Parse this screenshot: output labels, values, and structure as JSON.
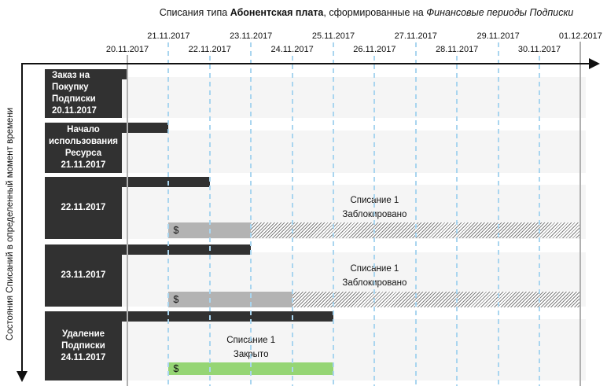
{
  "title": {
    "part1": "Списания типа ",
    "bold": "Абонентская плата",
    "part2": ", сформированные на ",
    "italic": "Финансовые периоды Подписки"
  },
  "y_axis_label": "Состояния Списаний в определенный момент времени",
  "colors": {
    "dark": "#313131",
    "row_band": "#f5f5f5",
    "gray_bar": "#b3b3b3",
    "green_bar": "#95d574",
    "dashed_tick_blue": "#a9d5ef",
    "solid_tick_gray": "#b0b0b0",
    "hatch_line": "#808080",
    "text": "#111111"
  },
  "timeline": {
    "ticks": [
      {
        "label": "20.11.2017",
        "day": 0,
        "label_row": "bottom",
        "line": "solid"
      },
      {
        "label": "21.11.2017",
        "day": 1,
        "label_row": "top",
        "line": "dashed"
      },
      {
        "label": "22.11.2017",
        "day": 2,
        "label_row": "bottom",
        "line": "dashed"
      },
      {
        "label": "23.11.2017",
        "day": 3,
        "label_row": "top",
        "line": "dashed"
      },
      {
        "label": "24.11.2017",
        "day": 4,
        "label_row": "bottom",
        "line": "dashed"
      },
      {
        "label": "25.11.2017",
        "day": 5,
        "label_row": "top",
        "line": "dashed"
      },
      {
        "label": "26.11.2017",
        "day": 6,
        "label_row": "bottom",
        "line": "dashed"
      },
      {
        "label": "27.11.2017",
        "day": 7,
        "label_row": "top",
        "line": "dashed"
      },
      {
        "label": "28.11.2017",
        "day": 8,
        "label_row": "bottom",
        "line": "dashed"
      },
      {
        "label": "29.11.2017",
        "day": 9,
        "label_row": "top",
        "line": "dashed"
      },
      {
        "label": "30.11.2017",
        "day": 10,
        "label_row": "bottom",
        "line": "dashed"
      },
      {
        "label": "01.12.2017",
        "day": 11,
        "label_row": "top",
        "line": "solid"
      }
    ]
  },
  "rows": [
    {
      "name": "subscription-purchase-order",
      "box_lines": [
        "Заказ на",
        "Покупку",
        "Подписки",
        "20.11.2017"
      ],
      "box_align": "left",
      "period_from_day": 0,
      "period_to_day": 0,
      "charge": null
    },
    {
      "name": "resource-usage-start",
      "box_lines": [
        "Начало",
        "использования",
        "Ресурса",
        "21.11.2017"
      ],
      "box_align": "center",
      "period_from_day": 0,
      "period_to_day": 1,
      "charge": null
    },
    {
      "name": "state-22-11-2017",
      "box_lines": [
        "22.11.2017"
      ],
      "box_align": "center",
      "period_from_day": 0,
      "period_to_day": 2,
      "charge": {
        "label": "Списание 1",
        "status": "Заблокировано",
        "kind": "blocked",
        "money_symbol": "$",
        "solid_from_day": 1,
        "solid_to_day": 3,
        "hatch_to_day": 11
      }
    },
    {
      "name": "state-23-11-2017",
      "box_lines": [
        "23.11.2017"
      ],
      "box_align": "center",
      "period_from_day": 0,
      "period_to_day": 3,
      "charge": {
        "label": "Списание 1",
        "status": "Заблокировано",
        "kind": "blocked",
        "money_symbol": "$",
        "solid_from_day": 1,
        "solid_to_day": 4,
        "hatch_to_day": 11
      }
    },
    {
      "name": "subscription-deletion",
      "box_lines": [
        "Удаление",
        "Подписки",
        "24.11.2017"
      ],
      "box_align": "center",
      "period_from_day": 0,
      "period_to_day": 5,
      "charge": {
        "label": "Списание 1",
        "status": "Закрыто",
        "kind": "closed",
        "money_symbol": "$",
        "solid_from_day": 1,
        "solid_to_day": 5,
        "hatch_to_day": null
      }
    }
  ]
}
